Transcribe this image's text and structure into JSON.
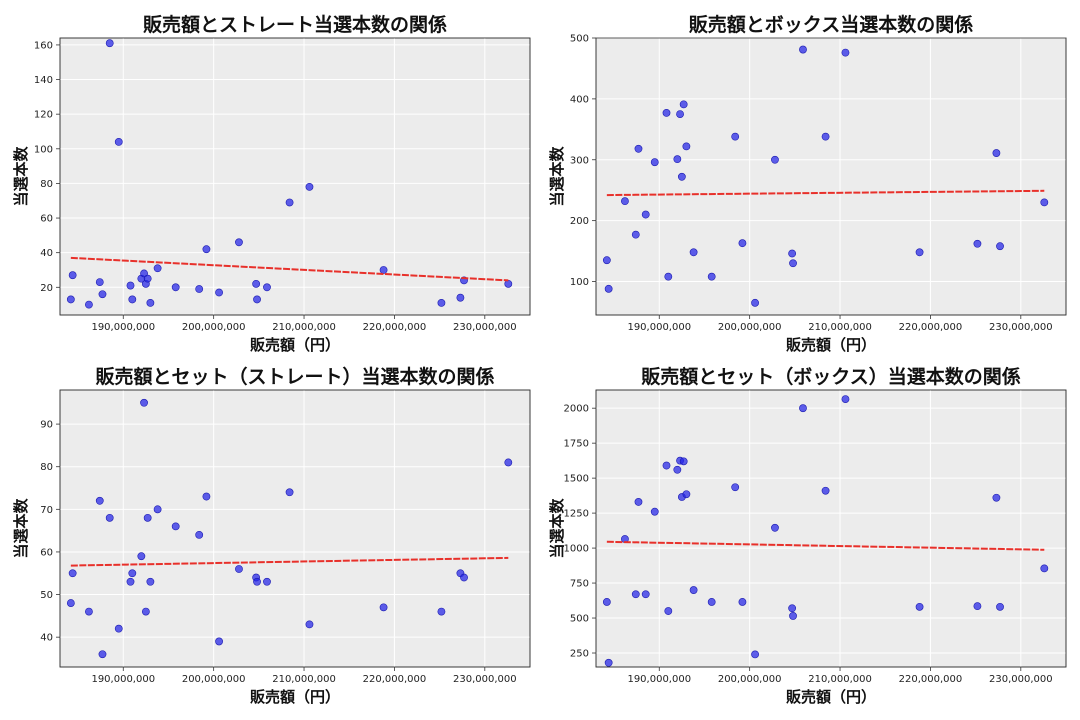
{
  "colors": {
    "points": "#2323e6",
    "regression": "#e8302a",
    "plot_background": "#ececec"
  },
  "chart_data": [
    {
      "type": "scatter",
      "title": "販売額とストレート当選本数の関係",
      "xlabel": "販売額（円）",
      "ylabel": "当選本数",
      "xlim": [
        183000000,
        235000000
      ],
      "ylim": [
        4,
        164
      ],
      "xticks": [
        190000000,
        200000000,
        210000000,
        220000000,
        230000000
      ],
      "xtick_labels": [
        "190,000,000",
        "200,000,000",
        "210,000,000",
        "220,000,000",
        "230,000,000"
      ],
      "yticks": [
        20,
        40,
        60,
        80,
        100,
        120,
        140,
        160
      ],
      "ytick_labels": [
        "20",
        "40",
        "60",
        "80",
        "100",
        "120",
        "140",
        "160"
      ],
      "points": {
        "x": [
          184200000,
          184400000,
          186200000,
          187400000,
          187700000,
          188500000,
          189500000,
          190800000,
          191000000,
          192000000,
          192300000,
          192500000,
          192700000,
          193000000,
          193800000,
          195800000,
          198400000,
          199200000,
          200600000,
          202800000,
          204700000,
          204800000,
          205900000,
          208400000,
          210600000,
          218800000,
          225200000,
          227300000,
          227700000,
          232600000
        ],
        "y": [
          13,
          27,
          10,
          23,
          16,
          161,
          104,
          21,
          13,
          25,
          28,
          22,
          25,
          11,
          31,
          20,
          19,
          42,
          17,
          46,
          22,
          13,
          20,
          69,
          78,
          30,
          11,
          14,
          24,
          22
        ]
      },
      "regression": {
        "x": [
          184200000,
          232600000
        ],
        "y": [
          37,
          24
        ]
      },
      "grid": true
    },
    {
      "type": "scatter",
      "title": "販売額とボックス当選本数の関係",
      "xlabel": "販売額（円）",
      "ylabel": "当選本数",
      "xlim": [
        183000000,
        235000000
      ],
      "ylim": [
        45,
        500
      ],
      "xticks": [
        190000000,
        200000000,
        210000000,
        220000000,
        230000000
      ],
      "xtick_labels": [
        "190,000,000",
        "200,000,000",
        "210,000,000",
        "220,000,000",
        "230,000,000"
      ],
      "yticks": [
        100,
        200,
        300,
        400,
        500
      ],
      "ytick_labels": [
        "100",
        "200",
        "300",
        "400",
        "500"
      ],
      "points": {
        "x": [
          184200000,
          184400000,
          186200000,
          187400000,
          187700000,
          188500000,
          189500000,
          190800000,
          191000000,
          192000000,
          192300000,
          192500000,
          192700000,
          193000000,
          193800000,
          195800000,
          198400000,
          199200000,
          200600000,
          202800000,
          204700000,
          204800000,
          205900000,
          208400000,
          210600000,
          218800000,
          225200000,
          227300000,
          227700000,
          232600000
        ],
        "y": [
          135,
          88,
          232,
          177,
          318,
          210,
          296,
          377,
          108,
          301,
          375,
          272,
          391,
          322,
          148,
          108,
          338,
          163,
          65,
          300,
          146,
          130,
          481,
          338,
          476,
          148,
          162,
          311,
          158,
          230
        ]
      },
      "regression": {
        "x": [
          184200000,
          232600000
        ],
        "y": [
          242,
          249
        ]
      },
      "grid": true
    },
    {
      "type": "scatter",
      "title": "販売額とセット（ストレート）当選本数の関係",
      "xlabel": "販売額（円）",
      "ylabel": "当選本数",
      "xlim": [
        183000000,
        235000000
      ],
      "ylim": [
        33,
        98
      ],
      "xticks": [
        190000000,
        200000000,
        210000000,
        220000000,
        230000000
      ],
      "xtick_labels": [
        "190,000,000",
        "200,000,000",
        "210,000,000",
        "220,000,000",
        "230,000,000"
      ],
      "yticks": [
        40,
        50,
        60,
        70,
        80,
        90
      ],
      "ytick_labels": [
        "40",
        "50",
        "60",
        "70",
        "80",
        "90"
      ],
      "points": {
        "x": [
          184200000,
          184400000,
          186200000,
          187400000,
          187700000,
          188500000,
          189500000,
          190800000,
          191000000,
          192000000,
          192300000,
          192500000,
          192700000,
          193000000,
          193800000,
          195800000,
          198400000,
          199200000,
          200600000,
          202800000,
          204700000,
          204800000,
          205900000,
          208400000,
          210600000,
          218800000,
          225200000,
          227300000,
          227700000,
          232600000
        ],
        "y": [
          48,
          55,
          46,
          72,
          36,
          68,
          42,
          53,
          55,
          59,
          95,
          46,
          68,
          53,
          70,
          66,
          64,
          73,
          39,
          56,
          54,
          53,
          53,
          74,
          43,
          47,
          46,
          55,
          54,
          81
        ]
      },
      "regression": {
        "x": [
          184200000,
          232600000
        ],
        "y": [
          56.8,
          58.6
        ]
      },
      "grid": true
    },
    {
      "type": "scatter",
      "title": "販売額とセット（ボックス）当選本数の関係",
      "xlabel": "販売額（円）",
      "ylabel": "当選本数",
      "xlim": [
        183000000,
        235000000
      ],
      "ylim": [
        150,
        2130
      ],
      "xticks": [
        190000000,
        200000000,
        210000000,
        220000000,
        230000000
      ],
      "xtick_labels": [
        "190,000,000",
        "200,000,000",
        "210,000,000",
        "220,000,000",
        "230,000,000"
      ],
      "yticks": [
        250,
        500,
        750,
        1000,
        1250,
        1500,
        1750,
        2000
      ],
      "ytick_labels": [
        "250",
        "500",
        "750",
        "1000",
        "1250",
        "1500",
        "1750",
        "2000"
      ],
      "points": {
        "x": [
          184200000,
          184400000,
          186200000,
          187400000,
          187700000,
          188500000,
          189500000,
          190800000,
          191000000,
          192000000,
          192300000,
          192500000,
          192700000,
          193000000,
          193800000,
          195800000,
          198400000,
          199200000,
          200600000,
          202800000,
          204700000,
          204800000,
          205900000,
          208400000,
          210600000,
          218800000,
          225200000,
          227300000,
          227700000,
          232600000
        ],
        "y": [
          615,
          180,
          1065,
          670,
          1330,
          670,
          1260,
          1590,
          550,
          1560,
          1625,
          1365,
          1620,
          1385,
          700,
          615,
          1435,
          615,
          240,
          1145,
          570,
          515,
          2000,
          1410,
          2065,
          580,
          585,
          1360,
          580,
          855
        ]
      },
      "regression": {
        "x": [
          184200000,
          232600000
        ],
        "y": [
          1045,
          988
        ]
      },
      "grid": true
    }
  ]
}
